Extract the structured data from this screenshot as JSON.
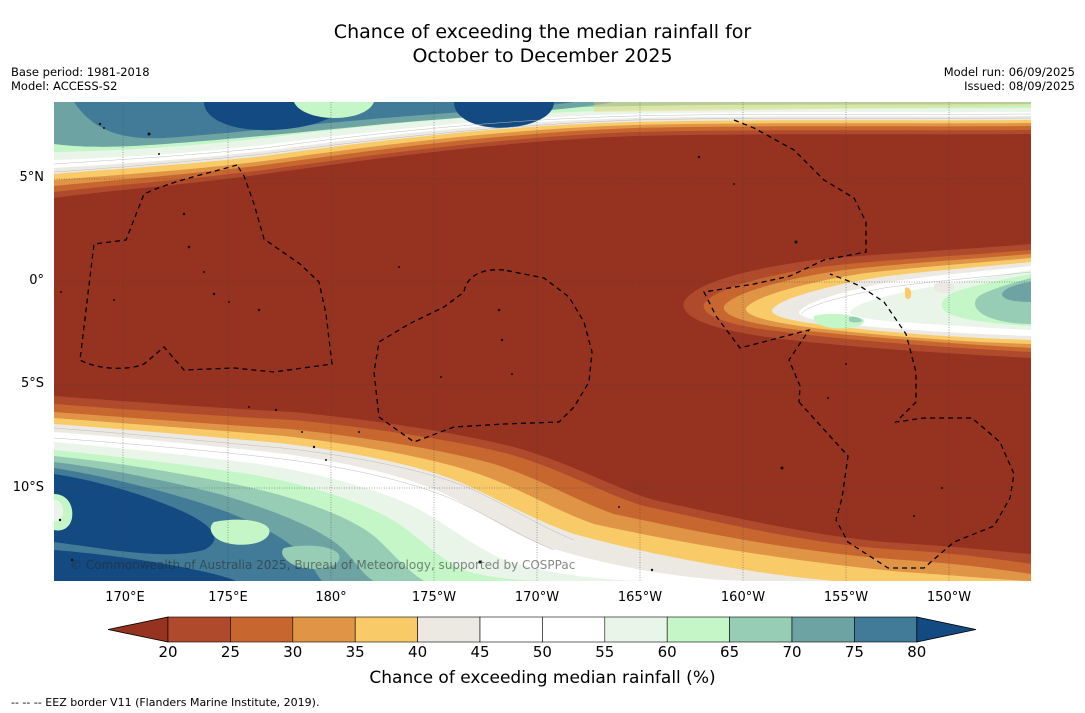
{
  "title_line1": "Chance of exceeding the median rainfall for",
  "title_line2": "October to December 2025",
  "base_period": "Base period: 1981-2018",
  "model": "Model: ACCESS-S2",
  "model_run": "Model run: 06/09/2025",
  "issued": "Issued: 08/09/2025",
  "lat_labels": [
    "5°N",
    "0°",
    "5°S",
    "10°S"
  ],
  "lon_labels": [
    "170°E",
    "175°E",
    "180°",
    "175°W",
    "170°W",
    "165°W",
    "160°W",
    "155°W",
    "150°W"
  ],
  "copyright": "© Commonwealth of Australia 2025, Bureau of Meteorology, supported by COSPPac",
  "colorbar": {
    "ticks": [
      "20",
      "25",
      "30",
      "35",
      "40",
      "45",
      "50",
      "55",
      "60",
      "65",
      "70",
      "75",
      "80"
    ],
    "colors": [
      "#953220",
      "#b04a2c",
      "#c8662f",
      "#df9446",
      "#f9ca68",
      "#ece9e3",
      "#ffffff",
      "#ffffff",
      "#e9f5e8",
      "#c5f6c7",
      "#98cdb5",
      "#6ea3a3",
      "#427b97",
      "#134a82"
    ],
    "label": "Chance of exceeding median rainfall (%)"
  },
  "footer": "--  --  -- EEZ border V11 (Flanders Marine Institute, 2019)."
}
